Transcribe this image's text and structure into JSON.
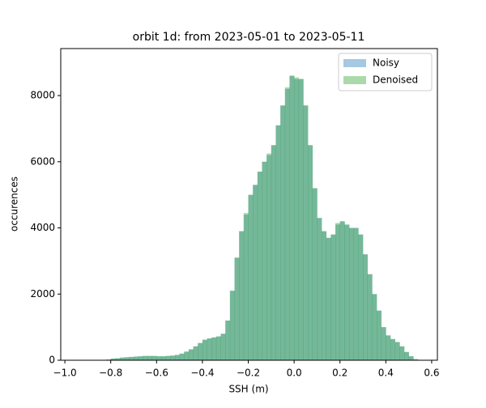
{
  "chart_data": {
    "type": "histogram",
    "title": "orbit 1d: from 2023-05-01 to 2023-05-11",
    "x_label": "SSH (m)",
    "y_label": "occurences",
    "bins": [
      -0.84,
      -0.82,
      -0.8,
      -0.78,
      -0.76,
      -0.74,
      -0.72,
      -0.7,
      -0.68,
      -0.66,
      -0.64,
      -0.62,
      -0.6,
      -0.58,
      -0.56,
      -0.54,
      -0.52,
      -0.5,
      -0.48,
      -0.46,
      -0.44,
      -0.42,
      -0.4,
      -0.38,
      -0.36,
      -0.34,
      -0.32,
      -0.3,
      -0.28,
      -0.26,
      -0.24,
      -0.22,
      -0.2,
      -0.18,
      -0.16,
      -0.14,
      -0.12,
      -0.1,
      -0.08,
      -0.06,
      -0.04,
      -0.02,
      0.0,
      0.02,
      0.04,
      0.06,
      0.08,
      0.1,
      0.12,
      0.14,
      0.16,
      0.18,
      0.2,
      0.22,
      0.24,
      0.26,
      0.28,
      0.3,
      0.32,
      0.34,
      0.36,
      0.38,
      0.4,
      0.42,
      0.44,
      0.46,
      0.48,
      0.5,
      0.52,
      0.54
    ],
    "series": [
      {
        "name": "Noisy",
        "color": "#1f77b4",
        "values": [
          10,
          20,
          50,
          60,
          80,
          90,
          100,
          110,
          120,
          130,
          130,
          130,
          120,
          120,
          130,
          140,
          160,
          200,
          260,
          330,
          420,
          520,
          620,
          660,
          690,
          720,
          800,
          1200,
          2100,
          3100,
          3900,
          4400,
          5000,
          5300,
          5700,
          6000,
          6200,
          6500,
          7100,
          7700,
          8200,
          8600,
          8500,
          8500,
          7700,
          6500,
          5200,
          4300,
          3900,
          3700,
          3800,
          4100,
          4200,
          4100,
          4000,
          4000,
          3800,
          3200,
          2600,
          2000,
          1500,
          1000,
          750,
          640,
          550,
          420,
          250,
          120,
          30
        ]
      },
      {
        "name": "Denoised",
        "color": "#2ca02c",
        "values": [
          10,
          20,
          50,
          60,
          80,
          90,
          100,
          110,
          120,
          130,
          130,
          130,
          120,
          120,
          130,
          140,
          160,
          200,
          260,
          330,
          420,
          520,
          620,
          660,
          690,
          720,
          800,
          1200,
          2100,
          3100,
          3900,
          4450,
          5000,
          5300,
          5700,
          6000,
          6250,
          6500,
          7100,
          7700,
          8250,
          8600,
          8550,
          8500,
          7700,
          6500,
          5200,
          4300,
          3900,
          3700,
          3800,
          4150,
          4200,
          4100,
          4000,
          4000,
          3800,
          3200,
          2600,
          2000,
          1500,
          1000,
          750,
          640,
          550,
          420,
          250,
          120,
          30
        ]
      }
    ],
    "xlim": [
      -1.018,
      0.625
    ],
    "ylim": [
      0,
      9420
    ],
    "xticks": [
      {
        "value": -1.0,
        "label": "−1.0"
      },
      {
        "value": -0.8,
        "label": "−0.8"
      },
      {
        "value": -0.6,
        "label": "−0.6"
      },
      {
        "value": -0.4,
        "label": "−0.4"
      },
      {
        "value": -0.2,
        "label": "−0.2"
      },
      {
        "value": 0,
        "label": "0.0"
      },
      0.2,
      0.4,
      0.6
    ],
    "yticks": [
      0,
      2000,
      4000,
      6000,
      8000
    ],
    "legend": "upper right"
  }
}
